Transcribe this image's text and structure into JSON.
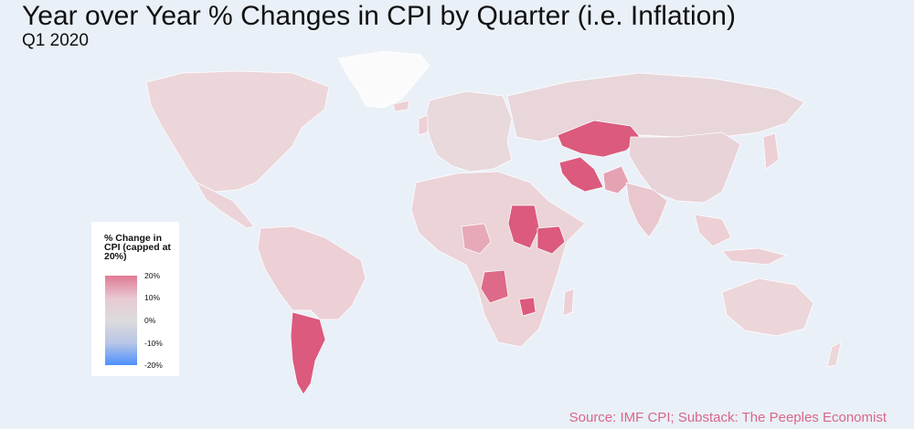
{
  "title": "Year over Year % Changes in CPI by Quarter (i.e. Inflation)",
  "subtitle": "Q1 2020",
  "source": "Source: IMF CPI; Substack: The Peeples Economist",
  "legend": {
    "title": "% Change in CPI (capped at 20%)",
    "ticks": [
      "20%",
      "10%",
      "0%",
      "-10%",
      "-20%"
    ]
  },
  "colors": {
    "background": "#eaf0f7",
    "high": "#db5a7d",
    "mid_high": "#e59aae",
    "low_positive": "#ecd0d6",
    "neutral": "#e3dfe2",
    "no_data": "#f4f6f9",
    "negative": "#4d90fe",
    "source_text": "#d9668a"
  },
  "regions": [
    {
      "name": "Greenland",
      "fill": "#fbfbfc"
    },
    {
      "name": "North America",
      "fill": "#ecd6da"
    },
    {
      "name": "Central America",
      "fill": "#ecd3d9"
    },
    {
      "name": "South America",
      "fill": "#ecd0d6"
    },
    {
      "name": "Argentina",
      "fill": "#db5a7d"
    },
    {
      "name": "Europe",
      "fill": "#e9d8dc"
    },
    {
      "name": "Russia",
      "fill": "#e8d6da"
    },
    {
      "name": "Kazakhstan",
      "fill": "#db5a7d"
    },
    {
      "name": "Iran",
      "fill": "#db5a7d"
    },
    {
      "name": "Pakistan",
      "fill": "#e4a2b3"
    },
    {
      "name": "China",
      "fill": "#e8d3d8"
    },
    {
      "name": "India",
      "fill": "#e9c7cf"
    },
    {
      "name": "Africa",
      "fill": "#ebd3d8"
    },
    {
      "name": "Sudan",
      "fill": "#db5a7d"
    },
    {
      "name": "Ethiopia",
      "fill": "#db5a7d"
    },
    {
      "name": "Nigeria",
      "fill": "#e7a9b8"
    },
    {
      "name": "Angola",
      "fill": "#dd6a88"
    },
    {
      "name": "Zimbabwe",
      "fill": "#db5a7d"
    },
    {
      "name": "Australia",
      "fill": "#ecd6da"
    },
    {
      "name": "New Zealand",
      "fill": "#ecd6da"
    }
  ]
}
